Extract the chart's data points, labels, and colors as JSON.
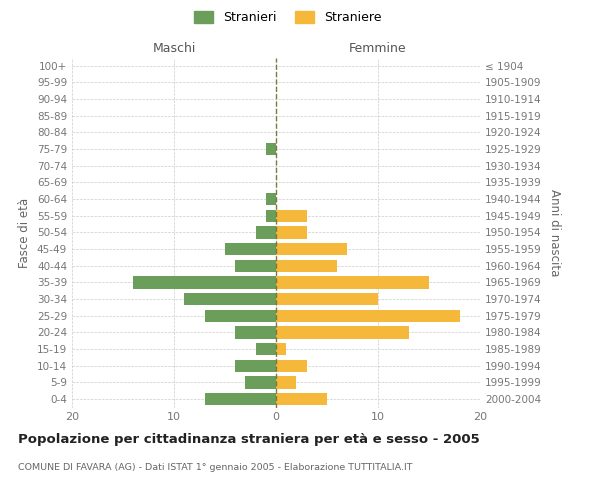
{
  "age_groups": [
    "100+",
    "95-99",
    "90-94",
    "85-89",
    "80-84",
    "75-79",
    "70-74",
    "65-69",
    "60-64",
    "55-59",
    "50-54",
    "45-49",
    "40-44",
    "35-39",
    "30-34",
    "25-29",
    "20-24",
    "15-19",
    "10-14",
    "5-9",
    "0-4"
  ],
  "birth_years": [
    "≤ 1904",
    "1905-1909",
    "1910-1914",
    "1915-1919",
    "1920-1924",
    "1925-1929",
    "1930-1934",
    "1935-1939",
    "1940-1944",
    "1945-1949",
    "1950-1954",
    "1955-1959",
    "1960-1964",
    "1965-1969",
    "1970-1974",
    "1975-1979",
    "1980-1984",
    "1985-1989",
    "1990-1994",
    "1995-1999",
    "2000-2004"
  ],
  "maschi": [
    0,
    0,
    0,
    0,
    0,
    1,
    0,
    0,
    1,
    1,
    2,
    5,
    4,
    14,
    9,
    7,
    4,
    2,
    4,
    3,
    7
  ],
  "femmine": [
    0,
    0,
    0,
    0,
    0,
    0,
    0,
    0,
    0,
    3,
    3,
    7,
    6,
    15,
    10,
    18,
    13,
    1,
    3,
    2,
    5
  ],
  "male_color": "#6a9e5a",
  "female_color": "#f5b83a",
  "center_line_color": "#7a7a40",
  "grid_color": "#cccccc",
  "title": "Popolazione per cittadinanza straniera per età e sesso - 2005",
  "subtitle": "COMUNE DI FAVARA (AG) - Dati ISTAT 1° gennaio 2005 - Elaborazione TUTTITALIA.IT",
  "header_left": "Maschi",
  "header_right": "Femmine",
  "ylabel_left": "Fasce di età",
  "ylabel_right": "Anni di nascita",
  "legend_male": "Stranieri",
  "legend_female": "Straniere",
  "xlim": 20,
  "background_color": "#ffffff",
  "bar_height": 0.75
}
